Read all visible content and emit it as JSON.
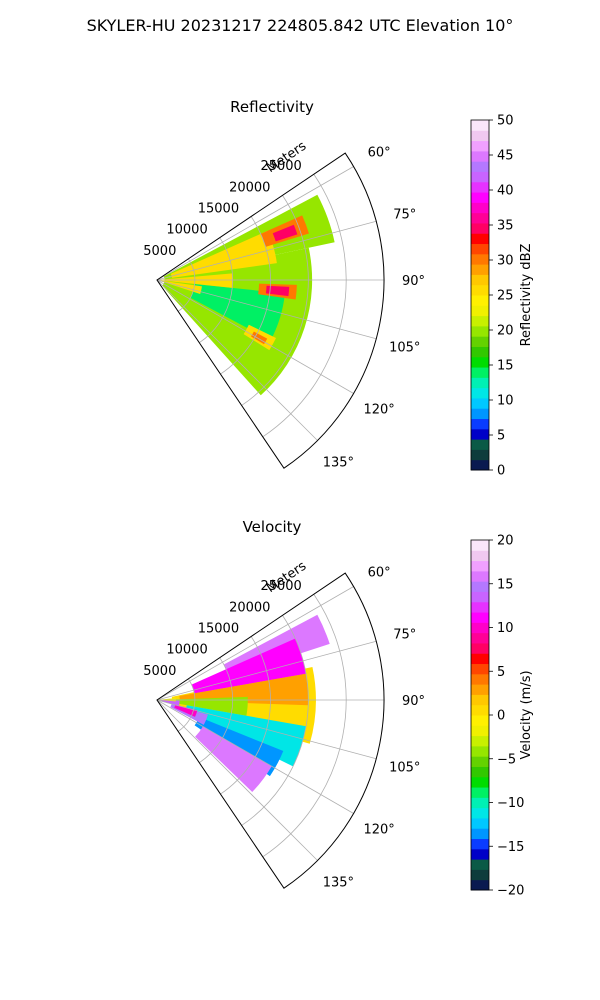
{
  "figure": {
    "suptitle": "SKYLER-HU  20231217  224805.842 UTC Elevation 10°"
  },
  "chart_data": [
    {
      "type": "heatmap",
      "projection": "polar-sector",
      "title": "Reflectivity",
      "radial_label": "Meters",
      "radial_ticks": [
        5000,
        10000,
        15000,
        20000,
        25000
      ],
      "rlim": [
        0,
        30000
      ],
      "azimuth_ticks": [
        60,
        75,
        90,
        105,
        120,
        135
      ],
      "azimuth_tick_labels": [
        "60°",
        "75°",
        "90°",
        "105°",
        "120°",
        "135°"
      ],
      "azimuth_range_deg": [
        56,
        146
      ],
      "grid": true,
      "colorbar": {
        "label": "Reflectivity dBZ",
        "vmin": 0,
        "vmax": 50,
        "ticks": [
          0,
          5,
          10,
          15,
          20,
          25,
          30,
          35,
          40,
          45,
          50
        ],
        "tick_labels": [
          "0",
          "5",
          "10",
          "15",
          "20",
          "25",
          "30",
          "35",
          "40",
          "45",
          "50"
        ],
        "colors": [
          "#0a1a50",
          "#0e3c3c",
          "#0a5a46",
          "#0000c8",
          "#0a3cff",
          "#0096ff",
          "#00c8ff",
          "#00e6e6",
          "#00f0b4",
          "#00f064",
          "#00dc00",
          "#32c800",
          "#64d200",
          "#96e600",
          "#c8f000",
          "#f0f000",
          "#fff000",
          "#ffdc00",
          "#ffc800",
          "#ffa000",
          "#ff7800",
          "#ff4600",
          "#ff0000",
          "#ff0064",
          "#ff0096",
          "#ff00c8",
          "#ff00ff",
          "#e632ff",
          "#c864ff",
          "#b478ff",
          "#dc78ff",
          "#f0a0ff",
          "#f0c8f0",
          "#fae6fa"
        ]
      },
      "echo_regions": [
        {
          "az": [
            62,
            78
          ],
          "r": [
            1000,
            24000
          ],
          "value": 20
        },
        {
          "az": [
            78,
            138
          ],
          "r": [
            1000,
            20500
          ],
          "value": 20
        },
        {
          "az": [
            96,
            118
          ],
          "r": [
            5000,
            17000
          ],
          "value": 14
        },
        {
          "az": [
            66,
            82
          ],
          "r": [
            2000,
            16000
          ],
          "value": 25
        },
        {
          "az": [
            85,
            96
          ],
          "r": [
            500,
            10000
          ],
          "value": 26
        },
        {
          "az": [
            98,
            108
          ],
          "r": [
            500,
            6000
          ],
          "value": 25
        },
        {
          "az": [
            66,
            73
          ],
          "r": [
            15000,
            21000
          ],
          "value": 30
        },
        {
          "az": [
            68,
            72
          ],
          "r": [
            16500,
            19500
          ],
          "value": 35
        },
        {
          "az": [
            92,
            98
          ],
          "r": [
            13500,
            18500
          ],
          "value": 30
        },
        {
          "az": [
            93,
            97
          ],
          "r": [
            14500,
            17500
          ],
          "value": 34
        },
        {
          "az": [
            116,
            122
          ],
          "r": [
            13500,
            17500
          ],
          "value": 26
        },
        {
          "az": [
            118,
            121
          ],
          "r": [
            14500,
            16500
          ],
          "value": 30
        }
      ]
    },
    {
      "type": "heatmap",
      "projection": "polar-sector",
      "title": "Velocity",
      "radial_label": "Meters",
      "radial_ticks": [
        5000,
        10000,
        15000,
        20000,
        25000
      ],
      "rlim": [
        0,
        30000
      ],
      "azimuth_ticks": [
        60,
        75,
        90,
        105,
        120,
        135
      ],
      "azimuth_tick_labels": [
        "60°",
        "75°",
        "90°",
        "105°",
        "120°",
        "135°"
      ],
      "azimuth_range_deg": [
        56,
        146
      ],
      "grid": true,
      "colorbar": {
        "label": "Velocity (m/s)",
        "vmin": -20,
        "vmax": 20,
        "ticks": [
          -20,
          -15,
          -10,
          -5,
          0,
          5,
          10,
          15,
          20
        ],
        "tick_labels": [
          "−20",
          "−15",
          "−10",
          "−5",
          "0",
          "5",
          "10",
          "15",
          "20"
        ],
        "colors": [
          "#0a1a50",
          "#0e3c3c",
          "#0a5a46",
          "#0000c8",
          "#0a3cff",
          "#0096ff",
          "#00c8ff",
          "#00e6e6",
          "#00f0b4",
          "#00f064",
          "#00dc00",
          "#32c800",
          "#64d200",
          "#96e600",
          "#c8f000",
          "#f0f000",
          "#fff000",
          "#ffdc00",
          "#ffc800",
          "#ffa000",
          "#ff7800",
          "#ff4600",
          "#ff0000",
          "#ff0064",
          "#ff0096",
          "#ff00c8",
          "#ff00ff",
          "#e632ff",
          "#c864ff",
          "#b478ff",
          "#dc78ff",
          "#f0a0ff",
          "#f0c8f0",
          "#fae6fa"
        ]
      },
      "echo_regions": [
        {
          "az": [
            78,
            106
          ],
          "r": [
            2000,
            21000
          ],
          "value": 1
        },
        {
          "az": [
            62,
            72
          ],
          "r": [
            10000,
            24000
          ],
          "value": 16
        },
        {
          "az": [
            66,
            80
          ],
          "r": [
            5000,
            20000
          ],
          "value": 11
        },
        {
          "az": [
            80,
            92
          ],
          "r": [
            3000,
            20000
          ],
          "value": 3
        },
        {
          "az": [
            88,
            100
          ],
          "r": [
            2000,
            12000
          ],
          "value": -4
        },
        {
          "az": [
            100,
            116
          ],
          "r": [
            4000,
            20000
          ],
          "value": -11
        },
        {
          "az": [
            112,
            124
          ],
          "r": [
            6000,
            18000
          ],
          "value": -13
        },
        {
          "az": [
            106,
            118
          ],
          "r": [
            2000,
            7000
          ],
          "value": 15
        },
        {
          "az": [
            104,
            114
          ],
          "r": [
            2500,
            5500
          ],
          "value": 10
        },
        {
          "az": [
            120,
            134
          ],
          "r": [
            7000,
            17500
          ],
          "value": 16
        },
        {
          "az": [
            92,
            106
          ],
          "r": [
            500,
            3000
          ],
          "value": 13
        },
        {
          "az": [
            84,
            94
          ],
          "r": [
            0,
            2500
          ],
          "value": -2
        }
      ]
    }
  ]
}
